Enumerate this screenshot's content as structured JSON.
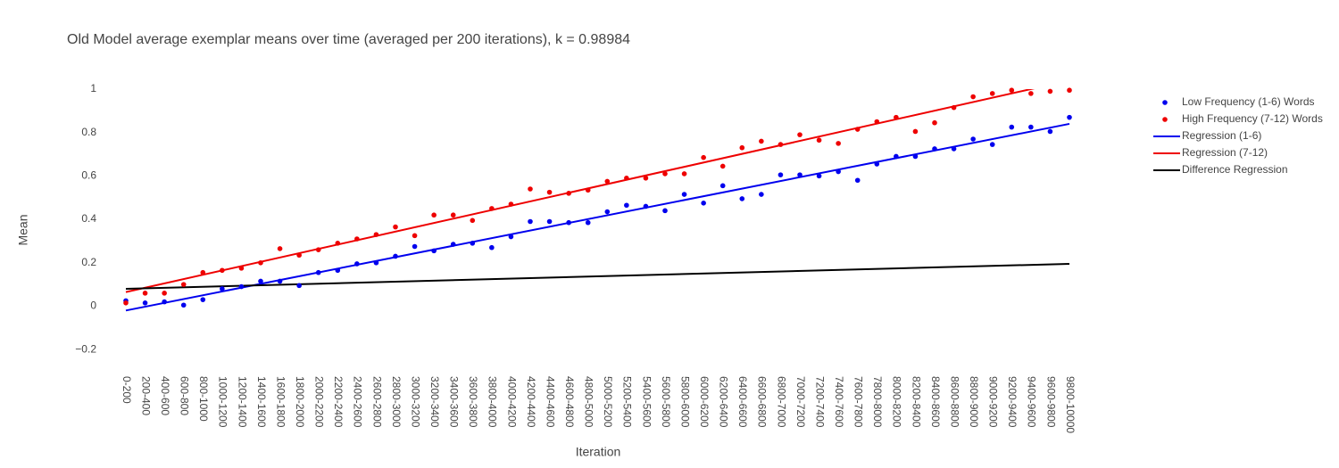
{
  "chart_data": {
    "type": "scatter",
    "title": "Old Model average exemplar means over time (averaged per 200 iterations), k = 0.98984",
    "x_label": "Iteration",
    "y_label": "Mean",
    "categories": [
      "0-200",
      "200-400",
      "400-600",
      "600-800",
      "800-1000",
      "1000-1200",
      "1200-1400",
      "1400-1600",
      "1600-1800",
      "1800-2000",
      "2000-2200",
      "2200-2400",
      "2400-2600",
      "2600-2800",
      "2800-3000",
      "3000-3200",
      "3200-3400",
      "3400-3600",
      "3600-3800",
      "3800-4000",
      "4000-4200",
      "4200-4400",
      "4400-4600",
      "4600-4800",
      "4800-5000",
      "5000-5200",
      "5200-5400",
      "5400-5600",
      "5600-5800",
      "5800-6000",
      "6000-6200",
      "6200-6400",
      "6400-6600",
      "6600-6800",
      "6800-7000",
      "7000-7200",
      "7200-7400",
      "7400-7600",
      "7600-7800",
      "7800-8000",
      "8000-8200",
      "8200-8400",
      "8400-8600",
      "8600-8800",
      "8800-9000",
      "9000-9200",
      "9200-9400",
      "9400-9600",
      "9600-9800",
      "9800-10000"
    ],
    "ylim": [
      -0.3,
      1.0
    ],
    "yticks": [
      {
        "value": -0.2,
        "label": "−0.2"
      },
      0,
      0.2,
      0.4,
      0.6,
      0.8,
      1
    ],
    "grid": false,
    "legend": "right",
    "series": [
      {
        "name": "Low Frequency (1-6) Words",
        "mode": "markers",
        "color": "#0000ee",
        "values": [
          0.025,
          0.015,
          0.02,
          0.005,
          0.03,
          0.08,
          0.09,
          0.115,
          0.115,
          0.095,
          0.155,
          0.165,
          0.195,
          0.2,
          0.23,
          0.275,
          0.255,
          0.285,
          0.29,
          0.27,
          0.32,
          0.39,
          0.39,
          0.385,
          0.385,
          0.435,
          0.465,
          0.46,
          0.44,
          0.515,
          0.475,
          0.555,
          0.495,
          0.515,
          0.605,
          0.605,
          0.6,
          0.62,
          0.58,
          0.655,
          0.69,
          0.69,
          0.725,
          0.725,
          0.77,
          0.745,
          0.825,
          0.825,
          0.805,
          0.87
        ]
      },
      {
        "name": "High Frequency (7-12) Words",
        "mode": "markers",
        "color": "#ee0000",
        "values": [
          0.015,
          0.06,
          0.06,
          0.1,
          0.155,
          0.165,
          0.175,
          0.2,
          0.265,
          0.235,
          0.26,
          0.29,
          0.31,
          0.33,
          0.365,
          0.325,
          0.42,
          0.42,
          0.395,
          0.45,
          0.47,
          0.54,
          0.525,
          0.52,
          0.535,
          0.575,
          0.59,
          0.59,
          0.61,
          0.61,
          0.685,
          0.645,
          0.73,
          0.76,
          0.745,
          0.79,
          0.765,
          0.75,
          0.815,
          0.85,
          0.87,
          0.805,
          0.845,
          0.915,
          0.965,
          0.98,
          0.995,
          0.98,
          0.99,
          0.995
        ]
      },
      {
        "name": "Regression (1-6)",
        "mode": "lines",
        "color": "#0000ee",
        "x": [
          "0-200",
          "9800-10000"
        ],
        "values": [
          -0.02,
          0.84
        ]
      },
      {
        "name": "Regression (7-12)",
        "mode": "lines",
        "color": "#ee0000",
        "x": [
          "0-200",
          "9800-10000"
        ],
        "values": [
          0.065,
          1.04
        ]
      },
      {
        "name": "Difference Regression",
        "mode": "lines",
        "color": "#000000",
        "x": [
          "0-200",
          "9800-10000"
        ],
        "values": [
          0.08,
          0.195
        ]
      }
    ]
  }
}
